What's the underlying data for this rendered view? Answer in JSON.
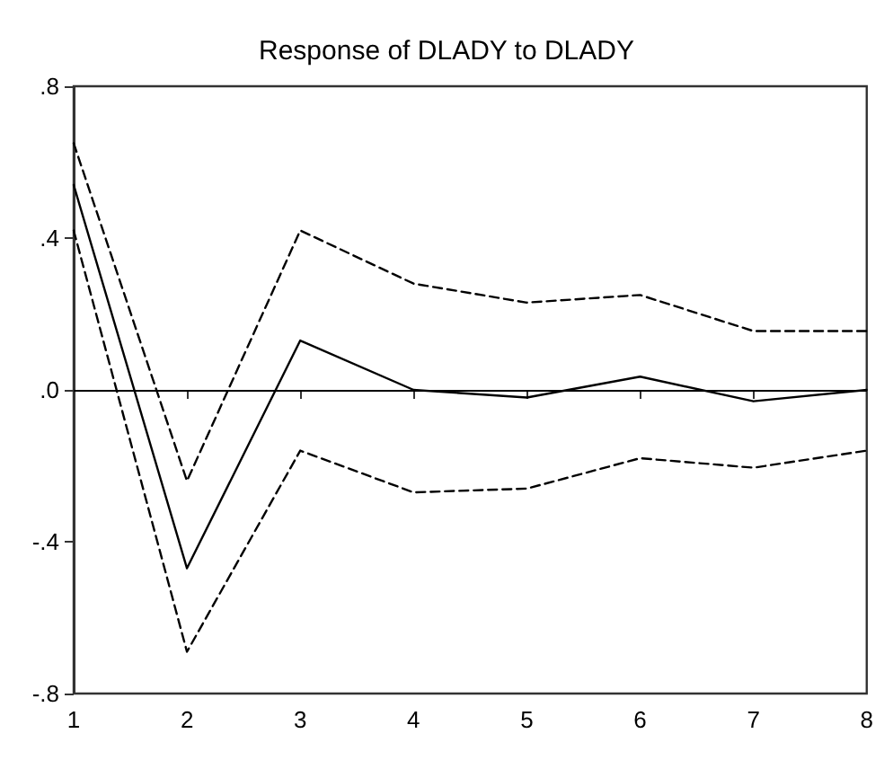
{
  "chart_data": {
    "type": "line",
    "title": "Response of DLADY to DLADY",
    "categories": [
      "1",
      "2",
      "3",
      "4",
      "5",
      "6",
      "7",
      "8"
    ],
    "series": [
      {
        "color": "#000000",
        "line_style": "solid",
        "values": [
          0.54,
          -0.47,
          0.13,
          0.0,
          -0.02,
          0.035,
          -0.03,
          0.0
        ]
      },
      {
        "color": "#000000",
        "line_style": "dashed",
        "values": [
          0.65,
          -0.24,
          0.42,
          0.28,
          0.23,
          0.25,
          0.155,
          0.155
        ]
      },
      {
        "color": "#000000",
        "line_style": "dashed",
        "values": [
          0.42,
          -0.69,
          -0.16,
          -0.27,
          -0.26,
          -0.18,
          -0.205,
          -0.16
        ]
      }
    ],
    "ylim": [
      -0.8,
      0.8
    ],
    "yticks": [
      {
        "value": -0.8,
        "label": "-.8"
      },
      {
        "value": -0.4,
        "label": "-.4"
      },
      {
        "value": 0,
        "label": ".0"
      },
      {
        "value": 0.4,
        "label": ".4"
      },
      {
        "value": 0.8,
        "label": ".8"
      }
    ],
    "ref_lines": [
      {
        "axis": "y",
        "value": 0,
        "color": "#000000",
        "line_style": "solid"
      }
    ],
    "grid": false,
    "marker": "none"
  }
}
